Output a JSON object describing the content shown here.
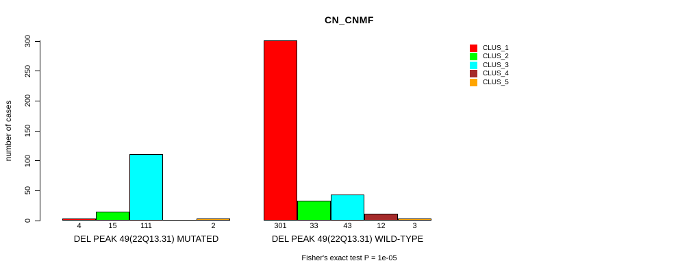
{
  "chart_data": {
    "type": "bar",
    "title": "CN_CNMF",
    "ylabel": "number of cases",
    "ylim": [
      0,
      300
    ],
    "yticks": [
      0,
      50,
      100,
      150,
      200,
      250,
      300
    ],
    "grid": false,
    "legend_position": "top-right-inside-plot",
    "background": "#FFFFFF",
    "bar_border_color": "#000000",
    "categories": [
      "DEL PEAK 49(22Q13.31) MUTATED",
      "DEL PEAK 49(22Q13.31) WILD-TYPE"
    ],
    "series": [
      {
        "name": "CLUS_1",
        "color": "#FF0000",
        "values": [
          4,
          301
        ]
      },
      {
        "name": "CLUS_2",
        "color": "#00FF00",
        "values": [
          15,
          33
        ]
      },
      {
        "name": "CLUS_3",
        "color": "#00FFFF",
        "values": [
          111,
          43
        ]
      },
      {
        "name": "CLUS_4",
        "color": "#A52A2A",
        "values": [
          0,
          12
        ]
      },
      {
        "name": "CLUS_5",
        "color": "#FFA500",
        "values": [
          2,
          3
        ]
      }
    ],
    "bar_value_labels": [
      [
        "4",
        "15",
        "111",
        "",
        "2"
      ],
      [
        "301",
        "33",
        "43",
        "12",
        "3"
      ]
    ],
    "annotation": "Fisher's exact test P = 1e-05"
  }
}
